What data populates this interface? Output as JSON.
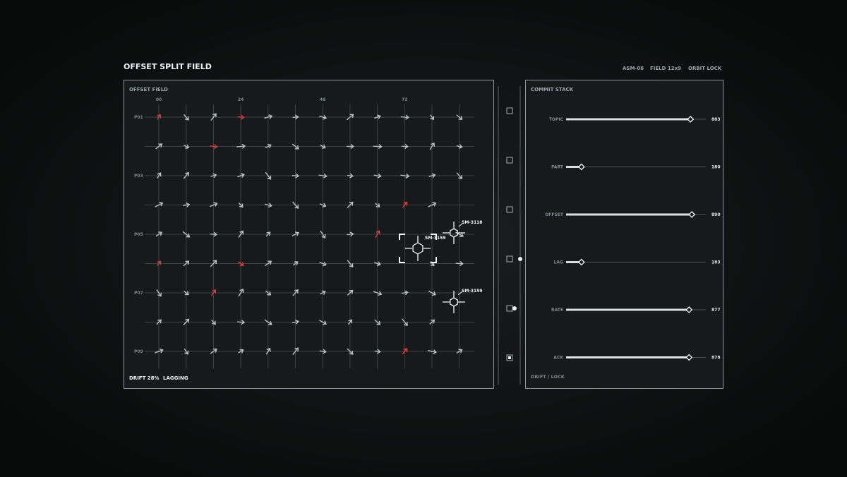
{
  "header": {
    "title": "OFFSET SPLIT FIELD",
    "tags": [
      "ASM-06",
      "FIELD 12x9",
      "ORBIT LOCK"
    ]
  },
  "field": {
    "title": "OFFSET FIELD",
    "columns": [
      "00",
      "24",
      "48",
      "72"
    ],
    "rows": [
      "P01",
      "P03",
      "P05",
      "P07",
      "P09"
    ],
    "targets": [
      "SM-3118",
      "SM-3159",
      "SM-3159"
    ],
    "footer": [
      "DRIFT 28%",
      "LAGGING"
    ]
  },
  "stack": {
    "title": "COMMIT STACK",
    "items": [
      {
        "label": "TOPIC",
        "value": "883"
      },
      {
        "label": "PART",
        "value": "180"
      },
      {
        "label": "OFFSET",
        "value": "890"
      },
      {
        "label": "LAG",
        "value": "183"
      },
      {
        "label": "RATE",
        "value": "877"
      },
      {
        "label": "ACK",
        "value": "878"
      }
    ],
    "footer": "DRIFT / LOCK"
  }
}
